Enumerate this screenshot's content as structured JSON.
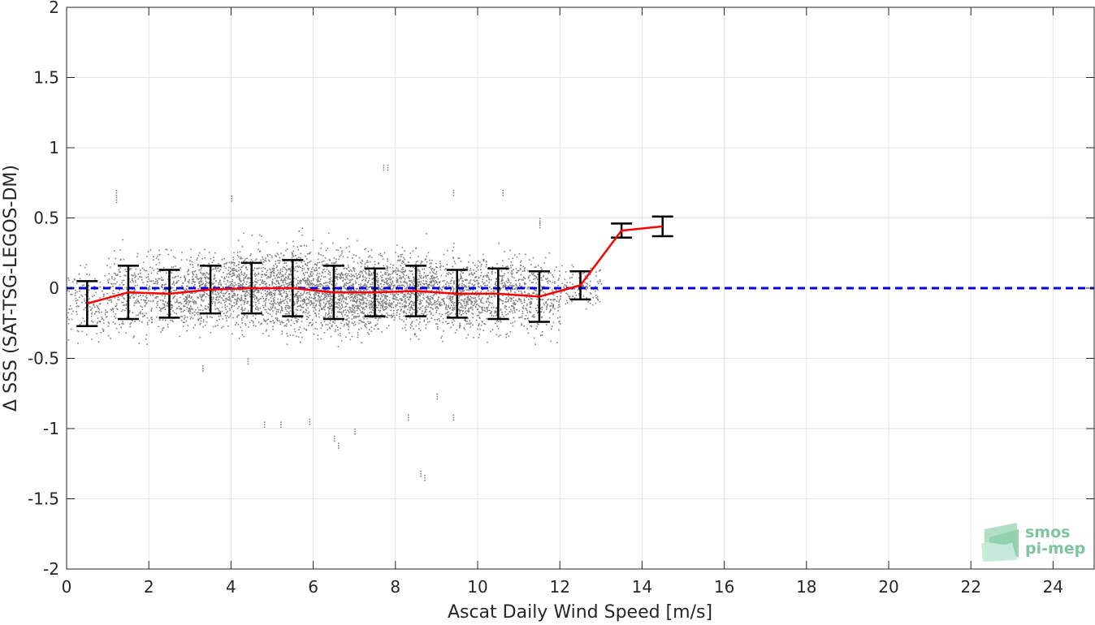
{
  "chart_data": {
    "type": "scatter",
    "xlabel": "Ascat Daily Wind Speed [m/s]",
    "ylabel": "Δ SSS (SAT-TSG-LEGOS-DM)",
    "xlim": [
      0,
      25
    ],
    "ylim": [
      -2,
      2
    ],
    "x_ticks": [
      0,
      2,
      4,
      6,
      8,
      10,
      12,
      14,
      16,
      18,
      20,
      22,
      24
    ],
    "y_ticks": [
      -2,
      -1.5,
      -1,
      -0.5,
      0,
      0.5,
      1,
      1.5,
      2
    ],
    "y_tick_labels": [
      "-2",
      "-1.5",
      "-1",
      "-0.5",
      "0",
      "0.5",
      "1",
      "1.5",
      "2"
    ],
    "grid": true,
    "reference_line": {
      "y": 0,
      "style": "dashed",
      "color": "#0000e0"
    },
    "scatter_cloud": {
      "color": "#808080",
      "approx_x_range": [
        0,
        12.9
      ],
      "approx_y_range": [
        -1.33,
        0.9
      ],
      "bins": [
        {
          "x": 0.5,
          "mean": -0.11,
          "sd": 0.16
        },
        {
          "x": 1.5,
          "mean": -0.03,
          "sd": 0.19
        },
        {
          "x": 2.5,
          "mean": -0.04,
          "sd": 0.17
        },
        {
          "x": 3.5,
          "mean": -0.01,
          "sd": 0.17
        },
        {
          "x": 4.5,
          "mean": 0.0,
          "sd": 0.18
        },
        {
          "x": 5.5,
          "mean": 0.0,
          "sd": 0.2
        },
        {
          "x": 6.5,
          "mean": -0.03,
          "sd": 0.19
        },
        {
          "x": 7.5,
          "mean": -0.03,
          "sd": 0.17
        },
        {
          "x": 8.5,
          "mean": -0.02,
          "sd": 0.18
        },
        {
          "x": 9.5,
          "mean": -0.04,
          "sd": 0.17
        },
        {
          "x": 10.5,
          "mean": -0.04,
          "sd": 0.18
        },
        {
          "x": 11.5,
          "mean": -0.06,
          "sd": 0.18
        },
        {
          "x": 12.5,
          "mean": 0.02,
          "sd": 0.1
        }
      ],
      "outliers": [
        [
          1.2,
          0.7
        ],
        [
          1.2,
          0.65
        ],
        [
          4.0,
          0.66
        ],
        [
          6.5,
          -1.05
        ],
        [
          6.6,
          -1.1
        ],
        [
          7.0,
          -1.0
        ],
        [
          7.7,
          0.88
        ],
        [
          7.8,
          0.88
        ],
        [
          8.6,
          -1.3
        ],
        [
          8.7,
          -1.33
        ],
        [
          4.8,
          -0.95
        ],
        [
          5.2,
          -0.95
        ],
        [
          5.9,
          -0.93
        ],
        [
          9.4,
          -0.9
        ],
        [
          9.4,
          0.7
        ],
        [
          10.6,
          0.7
        ],
        [
          11.5,
          0.5
        ],
        [
          11.5,
          0.47
        ],
        [
          4.4,
          -0.5
        ],
        [
          3.3,
          -0.55
        ],
        [
          8.3,
          -0.9
        ],
        [
          9.0,
          -0.75
        ]
      ]
    },
    "series": [
      {
        "name": "",
        "type": "line",
        "color": "#ff0000",
        "x": [
          0.5,
          1.5,
          2.5,
          3.5,
          4.5,
          5.5,
          6.5,
          7.5,
          8.5,
          9.5,
          10.5,
          11.5,
          12.5,
          13.5,
          14.5
        ],
        "values": [
          -0.11,
          -0.03,
          -0.04,
          -0.01,
          0.0,
          0.0,
          -0.03,
          -0.03,
          -0.02,
          -0.04,
          -0.04,
          -0.06,
          0.02,
          0.41,
          0.44
        ]
      }
    ],
    "error_bars": {
      "color": "#000000",
      "x": [
        0.5,
        1.5,
        2.5,
        3.5,
        4.5,
        5.5,
        6.5,
        7.5,
        8.5,
        9.5,
        10.5,
        11.5,
        12.5,
        13.5,
        14.5
      ],
      "lower": [
        -0.27,
        -0.22,
        -0.21,
        -0.18,
        -0.18,
        -0.2,
        -0.22,
        -0.2,
        -0.2,
        -0.21,
        -0.22,
        -0.24,
        -0.08,
        0.36,
        0.37
      ],
      "upper": [
        0.05,
        0.16,
        0.13,
        0.16,
        0.18,
        0.2,
        0.16,
        0.14,
        0.16,
        0.13,
        0.14,
        0.12,
        0.12,
        0.46,
        0.51
      ]
    }
  },
  "logo": {
    "line1": "smos",
    "line2": "pi-mep",
    "color": "#7fc4a0"
  }
}
